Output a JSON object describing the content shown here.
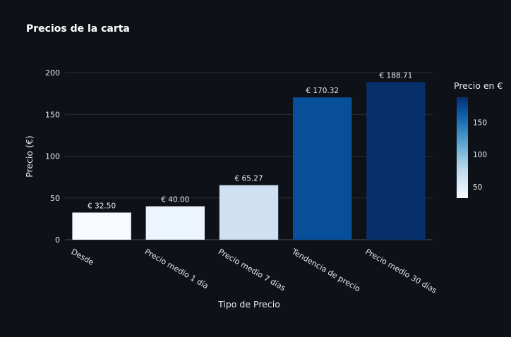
{
  "chart_data": {
    "type": "bar",
    "title": "Precios de la carta",
    "xlabel": "Tipo de Precio",
    "ylabel": "Precio (€)",
    "categories": [
      "Desde",
      "Precio medio 1 día",
      "Precio medio 7 días",
      "Tendencia de precio",
      "Precio medio 30 días"
    ],
    "values": [
      32.5,
      40.0,
      65.27,
      170.32,
      188.71
    ],
    "data_labels": [
      "€ 32.50",
      "€ 40.00",
      "€ 65.27",
      "€ 170.32",
      "€ 188.71"
    ],
    "ylim": [
      0,
      200
    ],
    "yticks": [
      0,
      50,
      100,
      150,
      200
    ],
    "grid": true,
    "colorbar": {
      "title": "Precio en €",
      "ticks": [
        50,
        100,
        150
      ],
      "range": [
        32.5,
        188.71
      ],
      "colorscale": [
        "#f7fbff",
        "#deebf7",
        "#c6dbef",
        "#9ecae1",
        "#6baed6",
        "#4292c6",
        "#2171b5",
        "#08519c",
        "#08306b"
      ],
      "placement": "right"
    }
  }
}
